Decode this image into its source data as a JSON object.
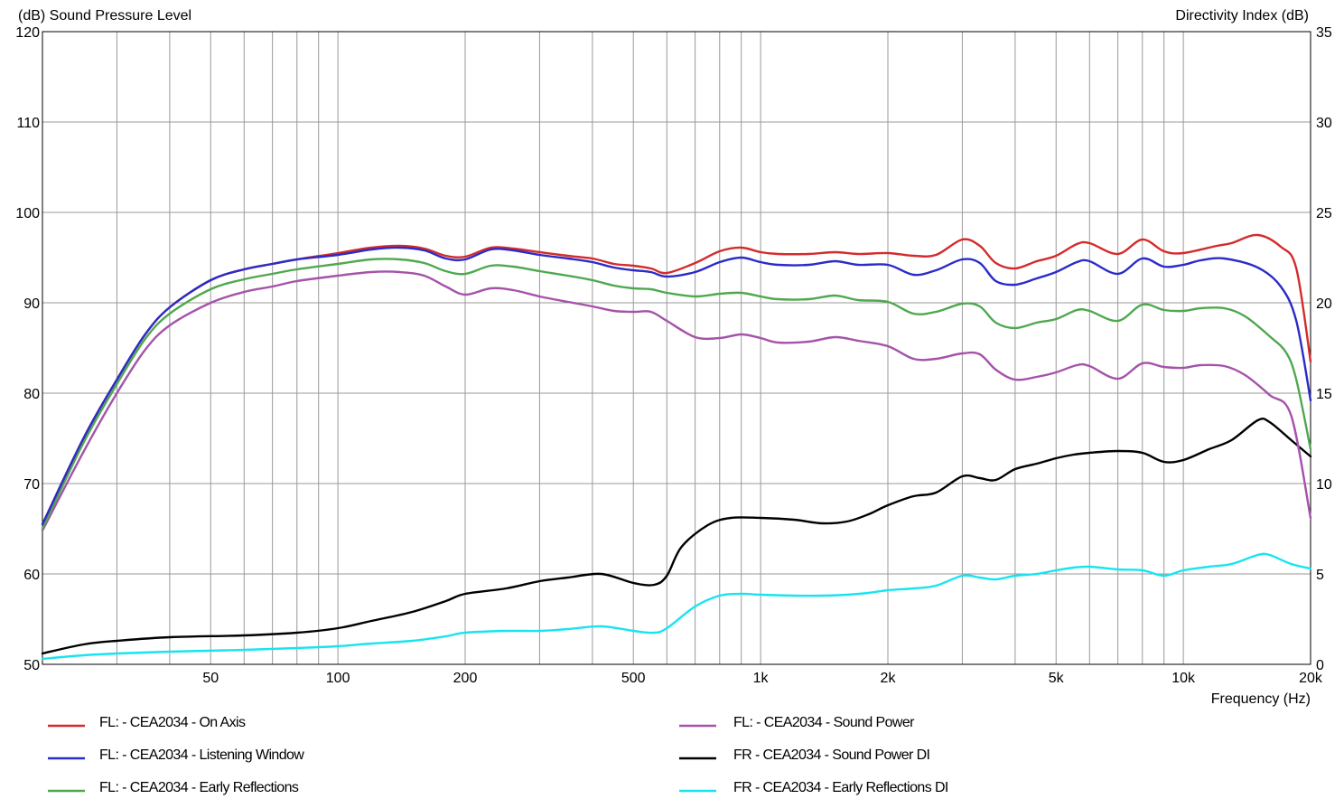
{
  "chart_data": {
    "type": "line",
    "title": "",
    "y_left_label": "(dB)  Sound Pressure Level",
    "y_right_label": "Directivity Index  (dB)",
    "x_label": "Frequency  (Hz)",
    "x_scale": "log",
    "xlim": [
      20,
      20000
    ],
    "ylim_left": [
      50,
      120
    ],
    "ylim_right": [
      0,
      35
    ],
    "grid": true,
    "legend_position": "bottom",
    "x_tick_labels": [
      "50",
      "100",
      "200",
      "500",
      "1k",
      "2k",
      "5k",
      "10k",
      "20k"
    ],
    "y_left_tick_labels": [
      "50",
      "60",
      "70",
      "80",
      "90",
      "100",
      "110",
      "120"
    ],
    "y_right_tick_labels": [
      "0",
      "5",
      "10",
      "15",
      "20",
      "25",
      "30",
      "35"
    ],
    "series": [
      {
        "name": "FL: - CEA2034 - On Axis",
        "axis": "left",
        "color": "#d42b2b",
        "points": [
          [
            20,
            65.5
          ],
          [
            25,
            75
          ],
          [
            30,
            81.5
          ],
          [
            35,
            86.5
          ],
          [
            40,
            89.5
          ],
          [
            50,
            92.5
          ],
          [
            60,
            93.7
          ],
          [
            70,
            94.3
          ],
          [
            80,
            94.8
          ],
          [
            100,
            95.5
          ],
          [
            120,
            96.1
          ],
          [
            140,
            96.3
          ],
          [
            160,
            96
          ],
          [
            180,
            95.2
          ],
          [
            200,
            95.1
          ],
          [
            230,
            96.1
          ],
          [
            260,
            96
          ],
          [
            300,
            95.6
          ],
          [
            350,
            95.2
          ],
          [
            400,
            94.9
          ],
          [
            450,
            94.3
          ],
          [
            500,
            94.1
          ],
          [
            550,
            93.8
          ],
          [
            600,
            93.3
          ],
          [
            700,
            94.4
          ],
          [
            800,
            95.7
          ],
          [
            900,
            96.1
          ],
          [
            1000,
            95.6
          ],
          [
            1100,
            95.4
          ],
          [
            1300,
            95.4
          ],
          [
            1500,
            95.6
          ],
          [
            1700,
            95.4
          ],
          [
            2000,
            95.5
          ],
          [
            2300,
            95.2
          ],
          [
            2600,
            95.3
          ],
          [
            3000,
            97
          ],
          [
            3300,
            96.3
          ],
          [
            3600,
            94.4
          ],
          [
            4000,
            93.8
          ],
          [
            4500,
            94.6
          ],
          [
            5000,
            95.2
          ],
          [
            5600,
            96.5
          ],
          [
            6000,
            96.6
          ],
          [
            7000,
            95.4
          ],
          [
            8000,
            97
          ],
          [
            9000,
            95.7
          ],
          [
            10000,
            95.5
          ],
          [
            12000,
            96.3
          ],
          [
            13000,
            96.6
          ],
          [
            15000,
            97.5
          ],
          [
            17000,
            96.2
          ],
          [
            18500,
            93.8
          ],
          [
            20000,
            83.5
          ]
        ]
      },
      {
        "name": "FL: - CEA2034 - Listening Window",
        "axis": "left",
        "color": "#2b2bc8",
        "points": [
          [
            20,
            65.5
          ],
          [
            25,
            75
          ],
          [
            30,
            81.5
          ],
          [
            35,
            86.5
          ],
          [
            40,
            89.5
          ],
          [
            50,
            92.5
          ],
          [
            60,
            93.7
          ],
          [
            70,
            94.3
          ],
          [
            80,
            94.8
          ],
          [
            100,
            95.3
          ],
          [
            120,
            95.9
          ],
          [
            140,
            96.1
          ],
          [
            160,
            95.8
          ],
          [
            180,
            94.9
          ],
          [
            200,
            94.8
          ],
          [
            230,
            95.9
          ],
          [
            260,
            95.8
          ],
          [
            300,
            95.3
          ],
          [
            350,
            94.9
          ],
          [
            400,
            94.5
          ],
          [
            450,
            93.9
          ],
          [
            500,
            93.6
          ],
          [
            550,
            93.4
          ],
          [
            600,
            92.9
          ],
          [
            700,
            93.4
          ],
          [
            800,
            94.5
          ],
          [
            900,
            95
          ],
          [
            1000,
            94.5
          ],
          [
            1100,
            94.2
          ],
          [
            1300,
            94.2
          ],
          [
            1500,
            94.6
          ],
          [
            1700,
            94.2
          ],
          [
            2000,
            94.2
          ],
          [
            2300,
            93.1
          ],
          [
            2600,
            93.6
          ],
          [
            3000,
            94.8
          ],
          [
            3300,
            94.4
          ],
          [
            3600,
            92.4
          ],
          [
            4000,
            92
          ],
          [
            4500,
            92.7
          ],
          [
            5000,
            93.4
          ],
          [
            5600,
            94.5
          ],
          [
            6000,
            94.6
          ],
          [
            7000,
            93.2
          ],
          [
            8000,
            94.9
          ],
          [
            9000,
            94
          ],
          [
            10000,
            94.2
          ],
          [
            11000,
            94.7
          ],
          [
            12500,
            94.9
          ],
          [
            15000,
            93.9
          ],
          [
            17000,
            91.8
          ],
          [
            18500,
            88
          ],
          [
            20000,
            79.2
          ]
        ]
      },
      {
        "name": "FL: - CEA2034 - Early Reflections",
        "axis": "left",
        "color": "#4fa84f",
        "points": [
          [
            20,
            65
          ],
          [
            25,
            74.5
          ],
          [
            30,
            81
          ],
          [
            35,
            86
          ],
          [
            40,
            88.8
          ],
          [
            50,
            91.5
          ],
          [
            60,
            92.6
          ],
          [
            70,
            93.2
          ],
          [
            80,
            93.7
          ],
          [
            100,
            94.3
          ],
          [
            120,
            94.8
          ],
          [
            140,
            94.8
          ],
          [
            160,
            94.4
          ],
          [
            180,
            93.5
          ],
          [
            200,
            93.2
          ],
          [
            230,
            94.1
          ],
          [
            260,
            94
          ],
          [
            300,
            93.5
          ],
          [
            350,
            93
          ],
          [
            400,
            92.5
          ],
          [
            450,
            91.9
          ],
          [
            500,
            91.6
          ],
          [
            550,
            91.5
          ],
          [
            600,
            91.1
          ],
          [
            700,
            90.7
          ],
          [
            800,
            91
          ],
          [
            900,
            91.1
          ],
          [
            1000,
            90.7
          ],
          [
            1100,
            90.4
          ],
          [
            1300,
            90.4
          ],
          [
            1500,
            90.8
          ],
          [
            1700,
            90.3
          ],
          [
            2000,
            90.1
          ],
          [
            2300,
            88.8
          ],
          [
            2600,
            89
          ],
          [
            3000,
            89.9
          ],
          [
            3300,
            89.6
          ],
          [
            3600,
            87.8
          ],
          [
            4000,
            87.2
          ],
          [
            4500,
            87.8
          ],
          [
            5000,
            88.2
          ],
          [
            5600,
            89.2
          ],
          [
            6000,
            89.1
          ],
          [
            7000,
            88
          ],
          [
            8000,
            89.8
          ],
          [
            9000,
            89.2
          ],
          [
            10000,
            89.1
          ],
          [
            11000,
            89.4
          ],
          [
            12500,
            89.4
          ],
          [
            14000,
            88.5
          ],
          [
            16000,
            86.3
          ],
          [
            17500,
            84.5
          ],
          [
            18500,
            81.5
          ],
          [
            20000,
            73.8
          ]
        ]
      },
      {
        "name": "FL: - CEA2034 - Sound Power",
        "axis": "left",
        "color": "#a453a9",
        "points": [
          [
            20,
            64.8
          ],
          [
            25,
            73.5
          ],
          [
            30,
            80
          ],
          [
            35,
            84.8
          ],
          [
            40,
            87.5
          ],
          [
            50,
            90
          ],
          [
            60,
            91.2
          ],
          [
            70,
            91.8
          ],
          [
            80,
            92.4
          ],
          [
            100,
            93
          ],
          [
            120,
            93.4
          ],
          [
            140,
            93.4
          ],
          [
            160,
            93
          ],
          [
            180,
            91.8
          ],
          [
            200,
            90.9
          ],
          [
            230,
            91.6
          ],
          [
            260,
            91.4
          ],
          [
            300,
            90.7
          ],
          [
            350,
            90.1
          ],
          [
            400,
            89.6
          ],
          [
            450,
            89.1
          ],
          [
            500,
            89
          ],
          [
            550,
            89
          ],
          [
            600,
            88
          ],
          [
            700,
            86.2
          ],
          [
            800,
            86.1
          ],
          [
            900,
            86.5
          ],
          [
            1000,
            86.1
          ],
          [
            1100,
            85.6
          ],
          [
            1300,
            85.7
          ],
          [
            1500,
            86.2
          ],
          [
            1700,
            85.8
          ],
          [
            2000,
            85.2
          ],
          [
            2300,
            83.8
          ],
          [
            2600,
            83.8
          ],
          [
            3000,
            84.4
          ],
          [
            3300,
            84.3
          ],
          [
            3600,
            82.6
          ],
          [
            4000,
            81.5
          ],
          [
            4500,
            81.8
          ],
          [
            5000,
            82.3
          ],
          [
            5600,
            83.1
          ],
          [
            6000,
            83
          ],
          [
            7000,
            81.6
          ],
          [
            8000,
            83.3
          ],
          [
            9000,
            82.9
          ],
          [
            10000,
            82.8
          ],
          [
            11000,
            83.1
          ],
          [
            12500,
            83
          ],
          [
            14000,
            82
          ],
          [
            16000,
            79.8
          ],
          [
            18000,
            77.5
          ],
          [
            20000,
            66.2
          ]
        ]
      },
      {
        "name": "FR - CEA2034 - Sound Power DI",
        "axis": "right",
        "color": "#000000",
        "points": [
          [
            20,
            0.6
          ],
          [
            25,
            1.1
          ],
          [
            30,
            1.3
          ],
          [
            40,
            1.5
          ],
          [
            60,
            1.6
          ],
          [
            80,
            1.75
          ],
          [
            100,
            2
          ],
          [
            120,
            2.4
          ],
          [
            150,
            2.9
          ],
          [
            180,
            3.5
          ],
          [
            200,
            3.9
          ],
          [
            250,
            4.2
          ],
          [
            300,
            4.6
          ],
          [
            350,
            4.8
          ],
          [
            420,
            5.0
          ],
          [
            500,
            4.5
          ],
          [
            560,
            4.4
          ],
          [
            600,
            4.9
          ],
          [
            650,
            6.5
          ],
          [
            750,
            7.7
          ],
          [
            850,
            8.1
          ],
          [
            1000,
            8.1
          ],
          [
            1200,
            8.0
          ],
          [
            1400,
            7.8
          ],
          [
            1600,
            7.9
          ],
          [
            1800,
            8.3
          ],
          [
            2000,
            8.8
          ],
          [
            2300,
            9.3
          ],
          [
            2600,
            9.5
          ],
          [
            3000,
            10.4
          ],
          [
            3300,
            10.3
          ],
          [
            3600,
            10.2
          ],
          [
            4000,
            10.8
          ],
          [
            4500,
            11.1
          ],
          [
            5000,
            11.4
          ],
          [
            5500,
            11.6
          ],
          [
            6000,
            11.7
          ],
          [
            7000,
            11.8
          ],
          [
            8000,
            11.7
          ],
          [
            9000,
            11.2
          ],
          [
            10000,
            11.3
          ],
          [
            11500,
            11.9
          ],
          [
            13000,
            12.4
          ],
          [
            15000,
            13.5
          ],
          [
            16000,
            13.4
          ],
          [
            18000,
            12.4
          ],
          [
            20000,
            11.5
          ]
        ]
      },
      {
        "name": "FR - CEA2034 - Early Reflections DI",
        "axis": "right",
        "color": "#18e4f0",
        "points": [
          [
            20,
            0.3
          ],
          [
            25,
            0.5
          ],
          [
            30,
            0.6
          ],
          [
            40,
            0.7
          ],
          [
            60,
            0.8
          ],
          [
            80,
            0.9
          ],
          [
            100,
            1.0
          ],
          [
            120,
            1.15
          ],
          [
            150,
            1.3
          ],
          [
            180,
            1.55
          ],
          [
            200,
            1.75
          ],
          [
            250,
            1.85
          ],
          [
            300,
            1.85
          ],
          [
            350,
            1.95
          ],
          [
            420,
            2.1
          ],
          [
            500,
            1.85
          ],
          [
            560,
            1.75
          ],
          [
            600,
            2.0
          ],
          [
            700,
            3.2
          ],
          [
            800,
            3.8
          ],
          [
            900,
            3.9
          ],
          [
            1000,
            3.85
          ],
          [
            1200,
            3.8
          ],
          [
            1400,
            3.8
          ],
          [
            1600,
            3.85
          ],
          [
            1800,
            3.95
          ],
          [
            2000,
            4.1
          ],
          [
            2300,
            4.2
          ],
          [
            2600,
            4.35
          ],
          [
            3000,
            4.9
          ],
          [
            3300,
            4.8
          ],
          [
            3600,
            4.7
          ],
          [
            4000,
            4.9
          ],
          [
            4500,
            5.0
          ],
          [
            5000,
            5.2
          ],
          [
            5500,
            5.35
          ],
          [
            6000,
            5.4
          ],
          [
            7000,
            5.25
          ],
          [
            8000,
            5.2
          ],
          [
            9000,
            4.9
          ],
          [
            10000,
            5.2
          ],
          [
            11500,
            5.4
          ],
          [
            13000,
            5.55
          ],
          [
            15000,
            6.05
          ],
          [
            16000,
            6.05
          ],
          [
            18000,
            5.55
          ],
          [
            20000,
            5.3
          ]
        ]
      }
    ]
  }
}
